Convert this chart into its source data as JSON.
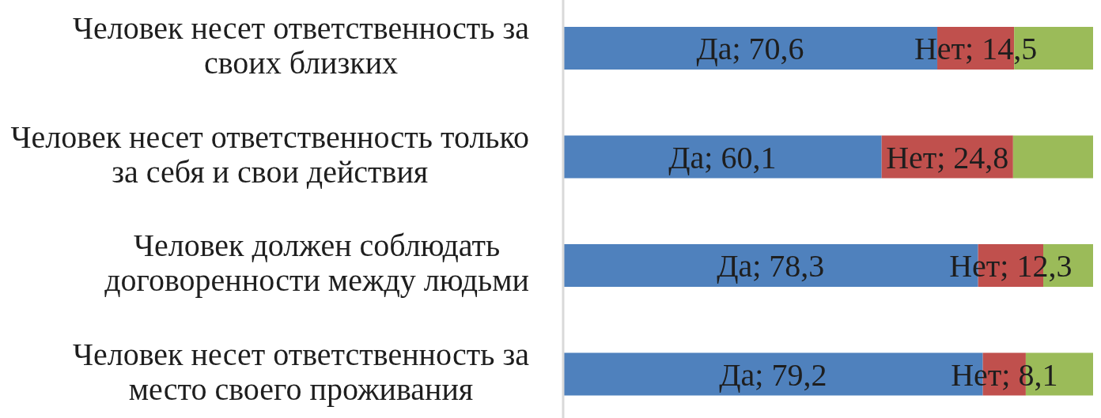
{
  "chart_data": {
    "type": "bar",
    "orientation": "horizontal",
    "stacked": true,
    "categories": [
      "Человек несет ответственность за своих близких",
      "Человек несет ответственность только за себя и свои действия",
      "Человек должен соблюдать договоренности между людьми",
      "Человек несет ответственность за место своего проживания"
    ],
    "series": [
      {
        "color": "#4f81bd",
        "values": [
          70.6,
          60.1,
          78.3,
          79.2
        ],
        "value_labels": [
          "Да; 70,6",
          "Да; 60,1",
          "Да; 78,3",
          "Да; 79,2"
        ]
      },
      {
        "color": "#c0504d",
        "values": [
          14.5,
          24.8,
          12.3,
          8.1
        ],
        "value_labels": [
          "Нет; 14,5",
          "Нет; 24,8",
          "Нет; 12,3",
          "Нет; 8,1"
        ]
      },
      {
        "color": "#9bbb59",
        "values": [
          14.9,
          15.1,
          9.4,
          12.7
        ]
      }
    ],
    "xlim": [
      0,
      100
    ],
    "tick_labels": "y"
  }
}
